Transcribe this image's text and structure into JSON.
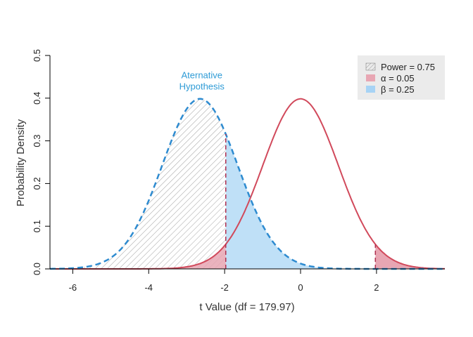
{
  "chart_data": {
    "type": "area",
    "xlabel": "t Value (df = 179.97)",
    "ylabel": "Probability Density",
    "x_ticks": [
      -6,
      -4,
      -2,
      0,
      2
    ],
    "y_ticks": [
      0.0,
      0.1,
      0.2,
      0.3,
      0.4,
      0.5
    ],
    "x_tick_labels": [
      "-6",
      "-4",
      "-2",
      "0",
      "2"
    ],
    "y_tick_labels": [
      "0.0",
      "0.1",
      "0.2",
      "0.3",
      "0.4",
      "0.5"
    ],
    "xlim": [
      -6.6,
      3.8
    ],
    "ylim": [
      0,
      0.5
    ],
    "df": 179.97,
    "critical_values": [
      -1.97,
      1.97
    ],
    "series": [
      {
        "name": "null",
        "style": "solid",
        "color": "#d1495b",
        "peak_x": 0,
        "x": [
          -6.6,
          -6,
          -5,
          -4,
          -3.5,
          -3,
          -2.5,
          -2,
          -1.5,
          -1,
          -0.5,
          0,
          0.5,
          1,
          1.5,
          2,
          2.5,
          3,
          3.5,
          3.8
        ],
        "y": [
          0.0,
          0.0,
          0.0,
          0.0,
          0.001,
          0.004,
          0.018,
          0.055,
          0.13,
          0.242,
          0.352,
          0.399,
          0.352,
          0.242,
          0.13,
          0.055,
          0.018,
          0.004,
          0.001,
          0.0
        ]
      },
      {
        "name": "alternative",
        "style": "dashed",
        "color": "#2e8bd0",
        "peak_x": -2.65,
        "x": [
          -6.6,
          -6,
          -5.5,
          -5,
          -4.5,
          -4,
          -3.5,
          -3,
          -2.65,
          -2.5,
          -2,
          -1.5,
          -1,
          -0.5,
          0,
          0.5,
          1,
          2,
          3,
          3.8
        ],
        "y": [
          0.0,
          0.002,
          0.008,
          0.025,
          0.07,
          0.16,
          0.28,
          0.375,
          0.399,
          0.395,
          0.32,
          0.2,
          0.1,
          0.04,
          0.012,
          0.003,
          0.001,
          0.0,
          0.0,
          0.0
        ]
      }
    ],
    "annotation": {
      "line1": "Aternative",
      "line2": "Hypothesis",
      "color": "#2e9bd6",
      "x": -2.6,
      "y": 0.435
    },
    "legend": {
      "placement": "top-right",
      "items": [
        {
          "label": "Power = 0.75",
          "fill": "hatch"
        },
        {
          "label": "α = 0.05",
          "fill": "#e8a6b3"
        },
        {
          "label": "β = 0.25",
          "fill": "#a7d3f5"
        }
      ]
    },
    "colors": {
      "null_line": "#d1495b",
      "alt_line": "#2e8bd0",
      "alpha_fill": "#e8a6b3",
      "beta_fill": "#bfe0f7",
      "hatch": "#8a8a8a",
      "legend_bg": "#ebebeb"
    }
  }
}
